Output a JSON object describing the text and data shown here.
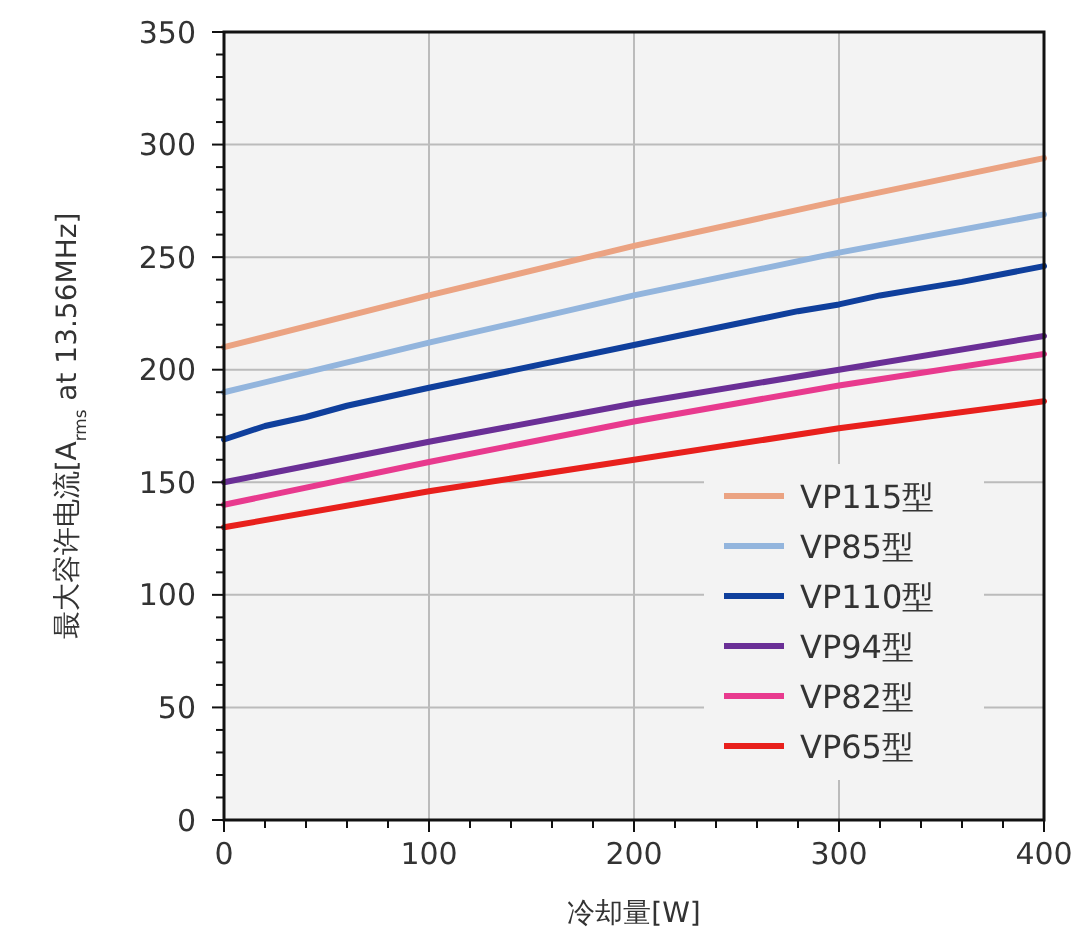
{
  "chart_data": {
    "type": "line",
    "xlabel": "冷却量[W]",
    "ylabel": "最大容许电流[A$_{rms}$ at 13.56MHz]",
    "xlim": [
      0,
      400
    ],
    "ylim": [
      0,
      350
    ],
    "xticks": [
      0,
      {
        "value": 20,
        "label": null
      },
      {
        "value": 40,
        "label": null
      },
      {
        "value": 60,
        "label": null
      },
      {
        "value": 80,
        "label": null
      },
      100,
      {
        "value": 120,
        "label": null
      },
      {
        "value": 140,
        "label": null
      },
      {
        "value": 160,
        "label": null
      },
      {
        "value": 180,
        "label": null
      },
      200,
      {
        "value": 220,
        "label": null
      },
      {
        "value": 240,
        "label": null
      },
      {
        "value": 260,
        "label": null
      },
      {
        "value": 280,
        "label": null
      },
      300,
      {
        "value": 320,
        "label": null
      },
      {
        "value": 340,
        "label": null
      },
      {
        "value": 360,
        "label": null
      },
      {
        "value": 380,
        "label": null
      },
      400
    ],
    "yticks": [
      0,
      {
        "value": 10,
        "label": null
      },
      {
        "value": 20,
        "label": null
      },
      {
        "value": 30,
        "label": null
      },
      {
        "value": 40,
        "label": null
      },
      50,
      {
        "value": 60,
        "label": null
      },
      {
        "value": 70,
        "label": null
      },
      {
        "value": 80,
        "label": null
      },
      {
        "value": 90,
        "label": null
      },
      100,
      {
        "value": 110,
        "label": null
      },
      {
        "value": 120,
        "label": null
      },
      {
        "value": 130,
        "label": null
      },
      {
        "value": 140,
        "label": null
      },
      150,
      {
        "value": 160,
        "label": null
      },
      {
        "value": 170,
        "label": null
      },
      {
        "value": 180,
        "label": null
      },
      {
        "value": 190,
        "label": null
      },
      200,
      {
        "value": 210,
        "label": null
      },
      {
        "value": 220,
        "label": null
      },
      {
        "value": 230,
        "label": null
      },
      {
        "value": 240,
        "label": null
      },
      250,
      {
        "value": 260,
        "label": null
      },
      {
        "value": 270,
        "label": null
      },
      {
        "value": 280,
        "label": null
      },
      {
        "value": 290,
        "label": null
      },
      300,
      {
        "value": 310,
        "label": null
      },
      {
        "value": 320,
        "label": null
      },
      {
        "value": 330,
        "label": null
      },
      {
        "value": 340,
        "label": null
      },
      350
    ],
    "grid": true,
    "legend": "bottom right",
    "marker": "none",
    "line_style": "solid",
    "series": [
      {
        "name": "VP115型",
        "color": "#eba382",
        "x": [
          0,
          100,
          200,
          300,
          400
        ],
        "values": [
          210,
          233,
          255,
          275,
          294
        ]
      },
      {
        "name": "VP85型",
        "color": "#93b5dd",
        "x": [
          0,
          100,
          200,
          300,
          400
        ],
        "values": [
          190,
          212,
          233,
          252,
          269
        ]
      },
      {
        "name": "VP110型",
        "color": "#0f3f9c",
        "x": [
          0,
          20,
          40,
          60,
          100,
          200,
          280,
          300,
          320,
          340,
          360,
          400
        ],
        "values": [
          169,
          175,
          179,
          184,
          192,
          211,
          226,
          229,
          233,
          236,
          239,
          246
        ]
      },
      {
        "name": "VP94型",
        "color": "#6a2f96",
        "x": [
          0,
          100,
          200,
          300,
          400
        ],
        "values": [
          150,
          168,
          185,
          200,
          215
        ]
      },
      {
        "name": "VP82型",
        "color": "#e83a8e",
        "x": [
          0,
          100,
          200,
          300,
          400
        ],
        "values": [
          140,
          159,
          177,
          193,
          207
        ]
      },
      {
        "name": "VP65型",
        "color": "#e8201c",
        "x": [
          0,
          100,
          200,
          300,
          400
        ],
        "values": [
          130,
          146,
          160,
          174,
          186
        ]
      }
    ]
  }
}
